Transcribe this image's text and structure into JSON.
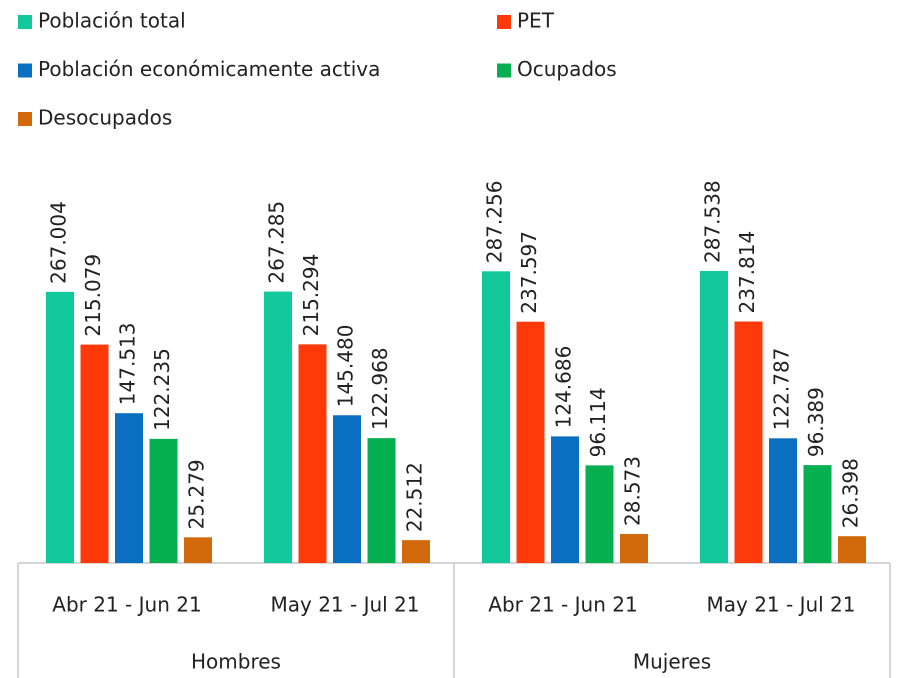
{
  "chart_data": {
    "type": "bar",
    "categories": [
      "Abr 21 - Jun 21",
      "May 21 - Jul 21",
      "Abr 21 - Jun 21",
      "May 21 - Jul 21"
    ],
    "groups": [
      "Hombres",
      "Mujeres"
    ],
    "series": [
      {
        "name": "Población total",
        "color": "#12c99b",
        "values": [
          267004,
          267285,
          287256,
          287538
        ],
        "value_labels": [
          "267.004",
          "267.285",
          "287.256",
          "287.538"
        ]
      },
      {
        "name": "PET",
        "color": "#ff3a0a",
        "values": [
          215079,
          215294,
          237597,
          237814
        ],
        "value_labels": [
          "215.079",
          "215.294",
          "237.597",
          "237.814"
        ]
      },
      {
        "name": "Población económicamente activa",
        "color": "#0b6fc1",
        "values": [
          147513,
          145480,
          124686,
          122787
        ],
        "value_labels": [
          "147.513",
          "145.480",
          "124.686",
          "122.787"
        ]
      },
      {
        "name": "Ocupados",
        "color": "#06b050",
        "values": [
          122235,
          122968,
          96114,
          96389
        ],
        "value_labels": [
          "122.235",
          "122.968",
          "96.114",
          "96.389"
        ]
      },
      {
        "name": "Desocupados",
        "color": "#d2690a",
        "values": [
          25279,
          22512,
          28573,
          26398
        ],
        "value_labels": [
          "25.279",
          "22.512",
          "28.573",
          "26.398"
        ]
      }
    ]
  }
}
